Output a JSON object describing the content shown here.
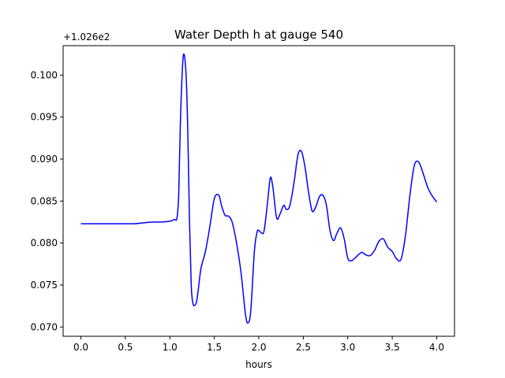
{
  "chart_data": {
    "type": "line",
    "title": "Water Depth h at gauge 540",
    "xlabel": "hours",
    "ylabel": "",
    "offset_label": "+1.026e2",
    "xlim": [
      -0.2,
      4.2
    ],
    "ylim": [
      0.0689,
      0.1035
    ],
    "x_ticks": [
      0.0,
      0.5,
      1.0,
      1.5,
      2.0,
      2.5,
      3.0,
      3.5,
      4.0
    ],
    "x_tick_labels": [
      "0.0",
      "0.5",
      "1.0",
      "1.5",
      "2.0",
      "2.5",
      "3.0",
      "3.5",
      "4.0"
    ],
    "y_ticks": [
      0.07,
      0.075,
      0.08,
      0.085,
      0.09,
      0.095,
      0.1
    ],
    "y_tick_labels": [
      "0.070",
      "0.075",
      "0.080",
      "0.085",
      "0.090",
      "0.095",
      "0.100"
    ],
    "grid": false,
    "line_color": "#0000ff",
    "series": [
      {
        "x": [
          0.0,
          0.2,
          0.4,
          0.6,
          0.7,
          0.8,
          0.9,
          1.0,
          1.05,
          1.08,
          1.1,
          1.12,
          1.15,
          1.18,
          1.2,
          1.22,
          1.24,
          1.26,
          1.28,
          1.3,
          1.32,
          1.35,
          1.4,
          1.45,
          1.5,
          1.55,
          1.58,
          1.62,
          1.66,
          1.7,
          1.75,
          1.8,
          1.85,
          1.88,
          1.91,
          1.95,
          1.98,
          2.0,
          2.03,
          2.06,
          2.1,
          2.13,
          2.16,
          2.2,
          2.24,
          2.28,
          2.31,
          2.35,
          2.4,
          2.44,
          2.48,
          2.52,
          2.56,
          2.6,
          2.64,
          2.68,
          2.72,
          2.76,
          2.8,
          2.84,
          2.88,
          2.92,
          2.96,
          3.0,
          3.04,
          3.08,
          3.12,
          3.16,
          3.2,
          3.25,
          3.3,
          3.35,
          3.4,
          3.45,
          3.5,
          3.55,
          3.6,
          3.65,
          3.7,
          3.75,
          3.8,
          3.85,
          3.9,
          3.95,
          4.0
        ],
        "y": [
          0.0823,
          0.0823,
          0.0823,
          0.0823,
          0.0824,
          0.0825,
          0.0825,
          0.0826,
          0.0828,
          0.083,
          0.086,
          0.095,
          0.1022,
          0.1005,
          0.094,
          0.083,
          0.075,
          0.0728,
          0.0726,
          0.073,
          0.0745,
          0.077,
          0.079,
          0.082,
          0.0853,
          0.0857,
          0.0845,
          0.0833,
          0.0832,
          0.0825,
          0.08,
          0.0765,
          0.0715,
          0.0705,
          0.072,
          0.079,
          0.0813,
          0.0815,
          0.0812,
          0.0815,
          0.085,
          0.0878,
          0.0865,
          0.083,
          0.0835,
          0.0845,
          0.084,
          0.0845,
          0.0875,
          0.0905,
          0.0909,
          0.089,
          0.086,
          0.0838,
          0.0843,
          0.0855,
          0.0857,
          0.0845,
          0.0815,
          0.0803,
          0.0812,
          0.0818,
          0.0805,
          0.0782,
          0.0779,
          0.0782,
          0.0786,
          0.0789,
          0.0786,
          0.0785,
          0.0791,
          0.0802,
          0.0805,
          0.0795,
          0.079,
          0.0781,
          0.0781,
          0.081,
          0.0858,
          0.0893,
          0.0896,
          0.0882,
          0.0866,
          0.0856,
          0.0849
        ]
      }
    ]
  }
}
